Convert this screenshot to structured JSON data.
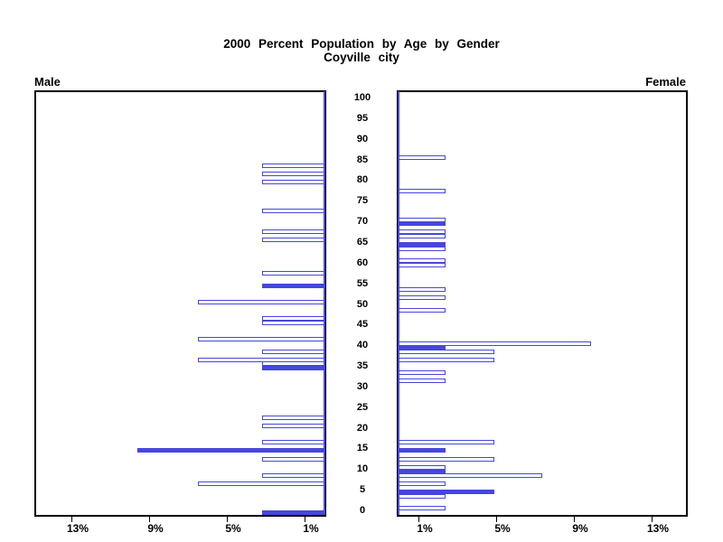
{
  "title": {
    "line1": "2000 Percent Population by Age by Gender",
    "line2": "Coyville city"
  },
  "panels": {
    "male_label": "Male",
    "female_label": "Female"
  },
  "axes": {
    "age_ticks": [
      0,
      5,
      10,
      15,
      20,
      25,
      30,
      35,
      40,
      45,
      50,
      55,
      60,
      65,
      70,
      75,
      80,
      85,
      90,
      95,
      100
    ],
    "male_percent_ticks": [
      {
        "label": "13%",
        "value": 13
      },
      {
        "label": "9%",
        "value": 9
      },
      {
        "label": "5%",
        "value": 5
      },
      {
        "label": "1%",
        "value": 1
      }
    ],
    "female_percent_ticks": [
      {
        "label": "1%",
        "value": 1
      },
      {
        "label": "5%",
        "value": 5
      },
      {
        "label": "9%",
        "value": 9
      },
      {
        "label": "13%",
        "value": 13
      }
    ],
    "percent_axis_max": 15
  },
  "colors": {
    "bar_blue": "#4646DE",
    "axis_black": "#000000",
    "background": "#FFFFFF"
  },
  "chart_data": {
    "type": "bar",
    "variant": "population-pyramid",
    "title": "2000 Percent Population by Age by Gender",
    "subtitle": "Coyville city",
    "x_axis": {
      "unit": "percent",
      "ticks": [
        1,
        5,
        9,
        13
      ],
      "max": 15,
      "note": "percent increases outward from center on both sides"
    },
    "y_axis": {
      "unit": "single year of age",
      "ticks": [
        0,
        5,
        10,
        15,
        20,
        25,
        30,
        35,
        40,
        45,
        50,
        55,
        60,
        65,
        70,
        75,
        80,
        85,
        90,
        95,
        100
      ]
    },
    "legend": {
      "solid_bar": "filled blue bar",
      "outline_bar": "white bar with blue outline"
    },
    "series": [
      {
        "name": "Male",
        "side": "left",
        "points": [
          {
            "age": 84,
            "percent": 3.2,
            "solid": false
          },
          {
            "age": 82,
            "percent": 3.2,
            "solid": false
          },
          {
            "age": 80,
            "percent": 3.2,
            "solid": false
          },
          {
            "age": 73,
            "percent": 3.2,
            "solid": false
          },
          {
            "age": 68,
            "percent": 3.2,
            "solid": false
          },
          {
            "age": 66,
            "percent": 3.2,
            "solid": false
          },
          {
            "age": 58,
            "percent": 3.2,
            "solid": false
          },
          {
            "age": 55,
            "percent": 3.2,
            "solid": true
          },
          {
            "age": 51,
            "percent": 6.5,
            "solid": false
          },
          {
            "age": 47,
            "percent": 3.2,
            "solid": false
          },
          {
            "age": 46,
            "percent": 3.2,
            "solid": false
          },
          {
            "age": 42,
            "percent": 6.5,
            "solid": false
          },
          {
            "age": 39,
            "percent": 3.2,
            "solid": false
          },
          {
            "age": 37,
            "percent": 6.5,
            "solid": false
          },
          {
            "age": 36,
            "percent": 3.2,
            "solid": false
          },
          {
            "age": 35,
            "percent": 3.2,
            "solid": true
          },
          {
            "age": 23,
            "percent": 3.2,
            "solid": false
          },
          {
            "age": 21,
            "percent": 3.2,
            "solid": false
          },
          {
            "age": 17,
            "percent": 3.2,
            "solid": false
          },
          {
            "age": 15,
            "percent": 9.6,
            "solid": true
          },
          {
            "age": 13,
            "percent": 3.2,
            "solid": false
          },
          {
            "age": 9,
            "percent": 3.2,
            "solid": false
          },
          {
            "age": 7,
            "percent": 6.5,
            "solid": false
          },
          {
            "age": 0,
            "percent": 3.2,
            "solid": true
          }
        ]
      },
      {
        "name": "Female",
        "side": "right",
        "points": [
          {
            "age": 86,
            "percent": 2.4,
            "solid": false
          },
          {
            "age": 78,
            "percent": 2.4,
            "solid": false
          },
          {
            "age": 71,
            "percent": 2.4,
            "solid": false
          },
          {
            "age": 70,
            "percent": 2.4,
            "solid": true
          },
          {
            "age": 68,
            "percent": 2.4,
            "solid": false
          },
          {
            "age": 67,
            "percent": 2.4,
            "solid": false
          },
          {
            "age": 65,
            "percent": 2.4,
            "solid": true
          },
          {
            "age": 64,
            "percent": 2.4,
            "solid": false
          },
          {
            "age": 61,
            "percent": 2.4,
            "solid": false
          },
          {
            "age": 60,
            "percent": 2.4,
            "solid": false
          },
          {
            "age": 54,
            "percent": 2.4,
            "solid": false
          },
          {
            "age": 52,
            "percent": 2.4,
            "solid": false
          },
          {
            "age": 49,
            "percent": 2.4,
            "solid": false
          },
          {
            "age": 41,
            "percent": 9.9,
            "solid": false
          },
          {
            "age": 40,
            "percent": 2.4,
            "solid": true
          },
          {
            "age": 39,
            "percent": 4.9,
            "solid": false
          },
          {
            "age": 37,
            "percent": 4.9,
            "solid": false
          },
          {
            "age": 34,
            "percent": 2.4,
            "solid": false
          },
          {
            "age": 32,
            "percent": 2.4,
            "solid": false
          },
          {
            "age": 17,
            "percent": 4.9,
            "solid": false
          },
          {
            "age": 15,
            "percent": 2.4,
            "solid": true
          },
          {
            "age": 13,
            "percent": 4.9,
            "solid": false
          },
          {
            "age": 11,
            "percent": 2.4,
            "solid": false
          },
          {
            "age": 10,
            "percent": 2.4,
            "solid": true
          },
          {
            "age": 9,
            "percent": 7.4,
            "solid": false
          },
          {
            "age": 7,
            "percent": 2.4,
            "solid": false
          },
          {
            "age": 5,
            "percent": 4.9,
            "solid": true
          },
          {
            "age": 4,
            "percent": 2.4,
            "solid": false
          },
          {
            "age": 1,
            "percent": 2.4,
            "solid": false
          }
        ]
      }
    ]
  }
}
